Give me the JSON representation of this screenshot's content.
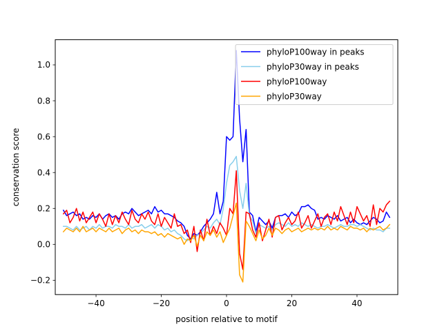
{
  "chart_data": {
    "type": "line",
    "title": "",
    "xlabel": "position relative to motif",
    "ylabel": "conservation score",
    "xlim": [
      -52.5,
      52.5
    ],
    "ylim": [
      -0.28,
      1.14
    ],
    "xticks": [
      -40,
      -20,
      0,
      20,
      40
    ],
    "xtick_labels": [
      "−40",
      "−20",
      "0",
      "20",
      "40"
    ],
    "yticks": [
      -0.2,
      0.0,
      0.2,
      0.4,
      0.6,
      0.8,
      1.0
    ],
    "ytick_labels": [
      "−0.2",
      "0.0",
      "0.2",
      "0.4",
      "0.6",
      "0.8",
      "1.0"
    ],
    "grid": false,
    "legend_position": "top-right",
    "x": [
      -50,
      -49,
      -48,
      -47,
      -46,
      -45,
      -44,
      -43,
      -42,
      -41,
      -40,
      -39,
      -38,
      -37,
      -36,
      -35,
      -34,
      -33,
      -32,
      -31,
      -30,
      -29,
      -28,
      -27,
      -26,
      -25,
      -24,
      -23,
      -22,
      -21,
      -20,
      -19,
      -18,
      -17,
      -16,
      -15,
      -14,
      -13,
      -12,
      -11,
      -10,
      -9,
      -8,
      -7,
      -6,
      -5,
      -4,
      -3,
      -2,
      -1,
      0,
      1,
      2,
      3,
      4,
      5,
      6,
      7,
      8,
      9,
      10,
      11,
      12,
      13,
      14,
      15,
      16,
      17,
      18,
      19,
      20,
      21,
      22,
      23,
      24,
      25,
      26,
      27,
      28,
      29,
      30,
      31,
      32,
      33,
      34,
      35,
      36,
      37,
      38,
      39,
      40,
      41,
      42,
      43,
      44,
      45,
      46,
      47,
      48,
      49,
      50
    ],
    "series": [
      {
        "name": "phyloP100way in peaks",
        "color": "#0000ff",
        "values": [
          0.19,
          0.16,
          0.17,
          0.18,
          0.16,
          0.17,
          0.14,
          0.15,
          0.14,
          0.16,
          0.15,
          0.17,
          0.14,
          0.16,
          0.17,
          0.15,
          0.16,
          0.14,
          0.17,
          0.18,
          0.17,
          0.2,
          0.18,
          0.16,
          0.17,
          0.18,
          0.19,
          0.17,
          0.21,
          0.18,
          0.19,
          0.17,
          0.17,
          0.16,
          0.15,
          0.13,
          0.12,
          0.1,
          0.05,
          0.03,
          0.06,
          0.05,
          0.07,
          0.1,
          0.12,
          0.14,
          0.17,
          0.29,
          0.17,
          0.24,
          0.6,
          0.58,
          0.6,
          1.08,
          0.7,
          0.46,
          0.64,
          0.18,
          0.16,
          0.07,
          0.15,
          0.13,
          0.11,
          0.13,
          0.09,
          0.15,
          0.16,
          0.16,
          0.17,
          0.15,
          0.18,
          0.16,
          0.17,
          0.21,
          0.21,
          0.22,
          0.2,
          0.19,
          0.14,
          0.15,
          0.14,
          0.16,
          0.15,
          0.14,
          0.16,
          0.13,
          0.14,
          0.15,
          0.12,
          0.14,
          0.12,
          0.11,
          0.12,
          0.11,
          0.13,
          0.15,
          0.14,
          0.12,
          0.13,
          0.18,
          0.15
        ]
      },
      {
        "name": "phyloP30way in peaks",
        "color": "#87ceeb",
        "values": [
          0.1,
          0.1,
          0.09,
          0.08,
          0.1,
          0.08,
          0.09,
          0.1,
          0.08,
          0.1,
          0.09,
          0.11,
          0.09,
          0.1,
          0.1,
          0.09,
          0.11,
          0.1,
          0.1,
          0.09,
          0.11,
          0.09,
          0.1,
          0.1,
          0.11,
          0.09,
          0.1,
          0.11,
          0.09,
          0.11,
          0.1,
          0.08,
          0.09,
          0.07,
          0.08,
          0.06,
          0.05,
          0.03,
          0.02,
          0.04,
          0.03,
          0.05,
          0.06,
          0.08,
          0.1,
          0.09,
          0.12,
          0.14,
          0.11,
          0.2,
          0.34,
          0.44,
          0.46,
          0.49,
          0.3,
          0.2,
          0.34,
          0.16,
          0.13,
          0.06,
          0.11,
          0.1,
          0.09,
          0.1,
          0.08,
          0.11,
          0.12,
          0.11,
          0.1,
          0.12,
          0.1,
          0.11,
          0.1,
          0.12,
          0.11,
          0.1,
          0.11,
          0.1,
          0.09,
          0.1,
          0.1,
          0.11,
          0.1,
          0.09,
          0.1,
          0.11,
          0.1,
          0.1,
          0.11,
          0.11,
          0.1,
          0.11,
          0.1,
          0.09,
          0.08,
          0.09,
          0.08,
          0.08,
          0.07,
          0.09,
          0.09
        ]
      },
      {
        "name": "phyloP100way",
        "color": "#ff0000",
        "values": [
          0.17,
          0.19,
          0.12,
          0.15,
          0.2,
          0.13,
          0.18,
          0.12,
          0.15,
          0.18,
          0.12,
          0.17,
          0.14,
          0.1,
          0.17,
          0.11,
          0.16,
          0.12,
          0.18,
          0.14,
          0.11,
          0.19,
          0.14,
          0.12,
          0.17,
          0.14,
          0.18,
          0.13,
          0.11,
          0.17,
          0.1,
          0.15,
          0.12,
          0.09,
          0.17,
          0.1,
          0.11,
          0.06,
          0.08,
          0.01,
          0.1,
          -0.04,
          0.08,
          0.02,
          0.14,
          0.05,
          0.1,
          0.06,
          0.12,
          0.09,
          0.05,
          0.2,
          0.17,
          0.41,
          -0.05,
          -0.14,
          0.18,
          0.17,
          0.08,
          0.04,
          0.12,
          0.02,
          0.08,
          0.14,
          0.04,
          0.15,
          0.16,
          0.08,
          0.12,
          0.15,
          0.11,
          0.13,
          0.18,
          0.09,
          0.12,
          0.16,
          0.09,
          0.13,
          0.17,
          0.1,
          0.15,
          0.17,
          0.11,
          0.18,
          0.13,
          0.21,
          0.16,
          0.11,
          0.18,
          0.12,
          0.21,
          0.17,
          0.13,
          0.16,
          0.1,
          0.22,
          0.11,
          0.2,
          0.18,
          0.22,
          0.24
        ]
      },
      {
        "name": "phyloP30way",
        "color": "#ffa500",
        "values": [
          0.07,
          0.09,
          0.08,
          0.07,
          0.09,
          0.07,
          0.1,
          0.07,
          0.08,
          0.09,
          0.07,
          0.09,
          0.08,
          0.07,
          0.09,
          0.07,
          0.08,
          0.09,
          0.06,
          0.08,
          0.09,
          0.07,
          0.08,
          0.06,
          0.08,
          0.07,
          0.07,
          0.06,
          0.07,
          0.05,
          0.06,
          0.04,
          0.06,
          0.05,
          0.04,
          0.03,
          0.04,
          0.0,
          0.03,
          0.02,
          0.05,
          -0.01,
          0.05,
          0.02,
          0.07,
          0.05,
          0.08,
          0.04,
          0.07,
          0.01,
          0.05,
          0.09,
          0.16,
          0.23,
          -0.17,
          -0.21,
          0.13,
          0.1,
          0.06,
          0.02,
          0.08,
          0.03,
          0.05,
          0.09,
          0.05,
          0.09,
          0.08,
          0.06,
          0.08,
          0.09,
          0.07,
          0.08,
          0.09,
          0.07,
          0.08,
          0.09,
          0.08,
          0.09,
          0.08,
          0.09,
          0.08,
          0.1,
          0.08,
          0.09,
          0.08,
          0.1,
          0.09,
          0.08,
          0.1,
          0.09,
          0.09,
          0.08,
          0.09,
          0.07,
          0.09,
          0.08,
          0.09,
          0.1,
          0.08,
          0.09,
          0.11
        ]
      }
    ]
  }
}
